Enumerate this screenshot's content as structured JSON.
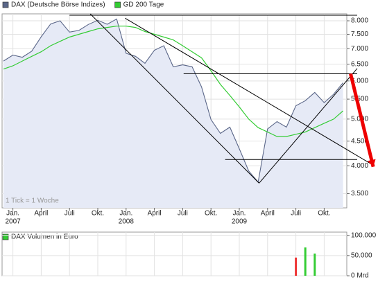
{
  "chart_data": [
    {
      "type": "line",
      "annotation": "1 Tick = 1 Woche",
      "categories": [
        null,
        "Jan.",
        null,
        null,
        "April",
        null,
        null,
        "Juli",
        null,
        null,
        "Okt.",
        null,
        null,
        "Jan.",
        null,
        null,
        "April",
        null,
        null,
        "Juli",
        null,
        null,
        "Okt.",
        null,
        null,
        "Jan.",
        null,
        null,
        "April",
        null,
        null,
        "Juli",
        null,
        null,
        "Okt.",
        null,
        null
      ],
      "year_ticks": [
        {
          "value": 1,
          "label": "2007"
        },
        {
          "value": 13,
          "label": "2008"
        },
        {
          "value": 25,
          "label": "2009"
        }
      ],
      "series": [
        {
          "name": "DAX (Deutsche Börse Indizes)",
          "color": "#5a6688",
          "fill": "#e6eaf6",
          "values": [
            6600,
            6790,
            6720,
            6920,
            7410,
            7880,
            8000,
            7580,
            7640,
            7860,
            8020,
            7870,
            8070,
            6850,
            6750,
            6530,
            6950,
            7100,
            6420,
            6480,
            6420,
            5830,
            4990,
            4670,
            4810,
            4340,
            3900,
            3700,
            4770,
            4940,
            4810,
            5330,
            5460,
            5680,
            5410,
            5630,
            5950
          ]
        },
        {
          "name": "GD 200 Tage",
          "color": "#33cc33",
          "values": [
            6350,
            6450,
            6600,
            6750,
            6900,
            7100,
            7250,
            7400,
            7500,
            7600,
            7700,
            7750,
            7800,
            7800,
            7750,
            7600,
            7500,
            7400,
            7300,
            7100,
            6900,
            6700,
            6300,
            5900,
            5600,
            5300,
            5000,
            4800,
            4700,
            4600,
            4600,
            4650,
            4700,
            4800,
            4900,
            5000,
            5200
          ]
        }
      ],
      "trend_lines": [
        {
          "x": [
            7,
            37.5
          ],
          "values": [
            8216,
            8216
          ],
          "color": "#000000"
        },
        {
          "x": [
            19.1,
            37.5
          ],
          "values": [
            6210,
            6210
          ],
          "color": "#000000"
        },
        {
          "x": [
            23.5,
            37.5
          ],
          "values": [
            4120,
            4120
          ],
          "color": "#000000"
        },
        {
          "x": [
            9.2,
            27.1
          ],
          "values": [
            8270,
            3680
          ],
          "color": "#000000"
        },
        {
          "x": [
            27.1,
            37.5
          ],
          "values": [
            3680,
            6370
          ],
          "color": "#000000"
        },
        {
          "x": [
            12.9,
            39.3
          ],
          "values": [
            8100,
            4000
          ],
          "color": "#000000"
        },
        {
          "x": [
            36.8,
            39.2
          ],
          "values": [
            6210,
            3980
          ],
          "color": "#ee0000"
        }
      ],
      "ylim": [
        3270,
        8270
      ],
      "log": true,
      "grid": true,
      "yticks": [
        {
          "value": 8000,
          "label": "8.000"
        },
        {
          "value": 7500,
          "label": "7.500"
        },
        {
          "value": 7000,
          "label": "7.000"
        },
        {
          "value": 6500,
          "label": "6.500"
        },
        {
          "value": 6000,
          "label": "6.000"
        },
        {
          "value": 5500,
          "label": "5.500"
        },
        {
          "value": 5000,
          "label": "5.000"
        },
        {
          "value": 4500,
          "label": "4.500"
        },
        {
          "value": 4000,
          "label": "4.000"
        },
        {
          "value": 3500,
          "label": "3.500"
        }
      ]
    },
    {
      "type": "bar",
      "series": [
        {
          "name": "DAX Volumen in Euro",
          "color": "#33cc33",
          "values": [
            null,
            null,
            null,
            null,
            null,
            null,
            null,
            null,
            null,
            null,
            null,
            null,
            null,
            null,
            null,
            null,
            null,
            null,
            null,
            null,
            null,
            null,
            null,
            null,
            null,
            null,
            null,
            null,
            null,
            null,
            null,
            45000,
            70000,
            55000,
            null,
            null,
            null
          ],
          "colors": [
            null,
            null,
            null,
            null,
            null,
            null,
            null,
            null,
            null,
            null,
            null,
            null,
            null,
            null,
            null,
            null,
            null,
            null,
            null,
            null,
            null,
            null,
            null,
            null,
            null,
            null,
            null,
            null,
            null,
            null,
            null,
            "#ee3333",
            "#33cc33",
            "#33cc33",
            null,
            null,
            null
          ]
        }
      ],
      "ylim": [
        0,
        108000
      ],
      "grid": true,
      "yticks": [
        {
          "value": 100000,
          "label": "100.000"
        },
        {
          "value": 50000,
          "label": "50.000"
        },
        {
          "value": 0,
          "label": "0 Mrd"
        }
      ]
    }
  ]
}
